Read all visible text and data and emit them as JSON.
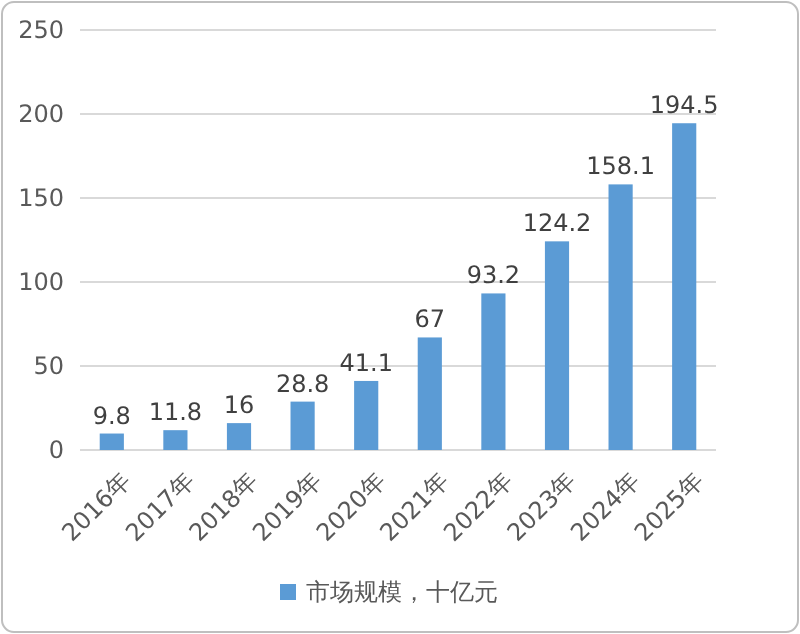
{
  "chart_data": {
    "type": "bar",
    "categories": [
      "2016年",
      "2017年",
      "2018年",
      "2019年",
      "2020年",
      "2021年",
      "2022年",
      "2023年",
      "2024年",
      "2025年"
    ],
    "series": [
      {
        "name": "市场规模，十亿元",
        "color": "#5b9bd5",
        "values": [
          9.8,
          11.8,
          16,
          28.8,
          41.1,
          67,
          93.2,
          124.2,
          158.1,
          194.5
        ]
      }
    ],
    "ylim": [
      0,
      250
    ],
    "yticks": [
      0,
      50,
      100,
      150,
      200,
      250
    ],
    "grid": "y",
    "legend": "bottom",
    "data_labels": true
  }
}
